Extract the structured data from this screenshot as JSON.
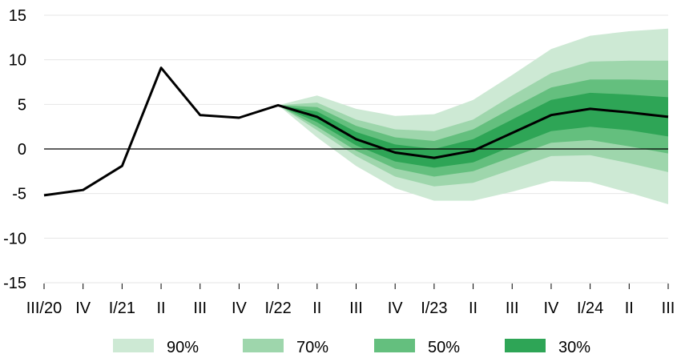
{
  "chart_data": {
    "type": "area",
    "title": "",
    "xlabel": "",
    "ylabel": "",
    "ylim": [
      -15,
      15
    ],
    "yticks": [
      15,
      10,
      5,
      0,
      -5,
      -10,
      -15
    ],
    "grid": "horizontal",
    "legend_position": "bottom",
    "categories": [
      "III/20",
      "IV",
      "I/21",
      "II",
      "III",
      "IV",
      "I/22",
      "II",
      "III",
      "IV",
      "I/23",
      "II",
      "III",
      "IV",
      "I/24",
      "II",
      "III"
    ],
    "central": [
      -5.2,
      -4.6,
      -1.9,
      9.1,
      3.8,
      3.5,
      4.9,
      3.6,
      1.1,
      -0.4,
      -1.0,
      -0.2,
      1.8,
      3.8,
      4.5,
      4.1,
      3.6
    ],
    "bands": [
      {
        "name": "90%",
        "color": "#cde9d4",
        "start_index": 6,
        "upper": [
          4.9,
          6.0,
          4.5,
          3.7,
          3.9,
          5.5,
          8.3,
          11.2,
          12.7,
          13.2,
          13.5
        ],
        "lower": [
          4.9,
          1.3,
          -1.9,
          -4.4,
          -5.8,
          -5.8,
          -4.8,
          -3.6,
          -3.7,
          -4.9,
          -6.2
        ]
      },
      {
        "name": "70%",
        "color": "#9ed6ac",
        "start_index": 6,
        "upper": [
          4.9,
          5.2,
          3.3,
          2.2,
          2.0,
          3.3,
          6.0,
          8.5,
          9.8,
          9.9,
          9.9
        ],
        "lower": [
          4.9,
          2.1,
          -0.8,
          -3.1,
          -4.2,
          -3.8,
          -2.3,
          -0.8,
          -0.7,
          -1.6,
          -2.6
        ]
      },
      {
        "name": "50%",
        "color": "#64bf7e",
        "start_index": 6,
        "upper": [
          4.9,
          4.7,
          2.6,
          1.3,
          0.9,
          2.2,
          4.6,
          6.9,
          7.8,
          7.8,
          7.7
        ],
        "lower": [
          4.9,
          2.5,
          -0.2,
          -2.2,
          -3.1,
          -2.5,
          -0.9,
          0.7,
          1.0,
          0.3,
          -0.5
        ]
      },
      {
        "name": "30%",
        "color": "#2ea556",
        "start_index": 6,
        "upper": [
          4.9,
          4.2,
          1.9,
          0.5,
          0.0,
          1.1,
          3.3,
          5.5,
          6.3,
          6.1,
          5.8
        ],
        "lower": [
          4.9,
          3.0,
          0.4,
          -1.4,
          -2.1,
          -1.5,
          0.3,
          2.0,
          2.5,
          2.1,
          1.4
        ]
      }
    ],
    "legend": [
      "90%",
      "70%",
      "50%",
      "30%"
    ]
  }
}
